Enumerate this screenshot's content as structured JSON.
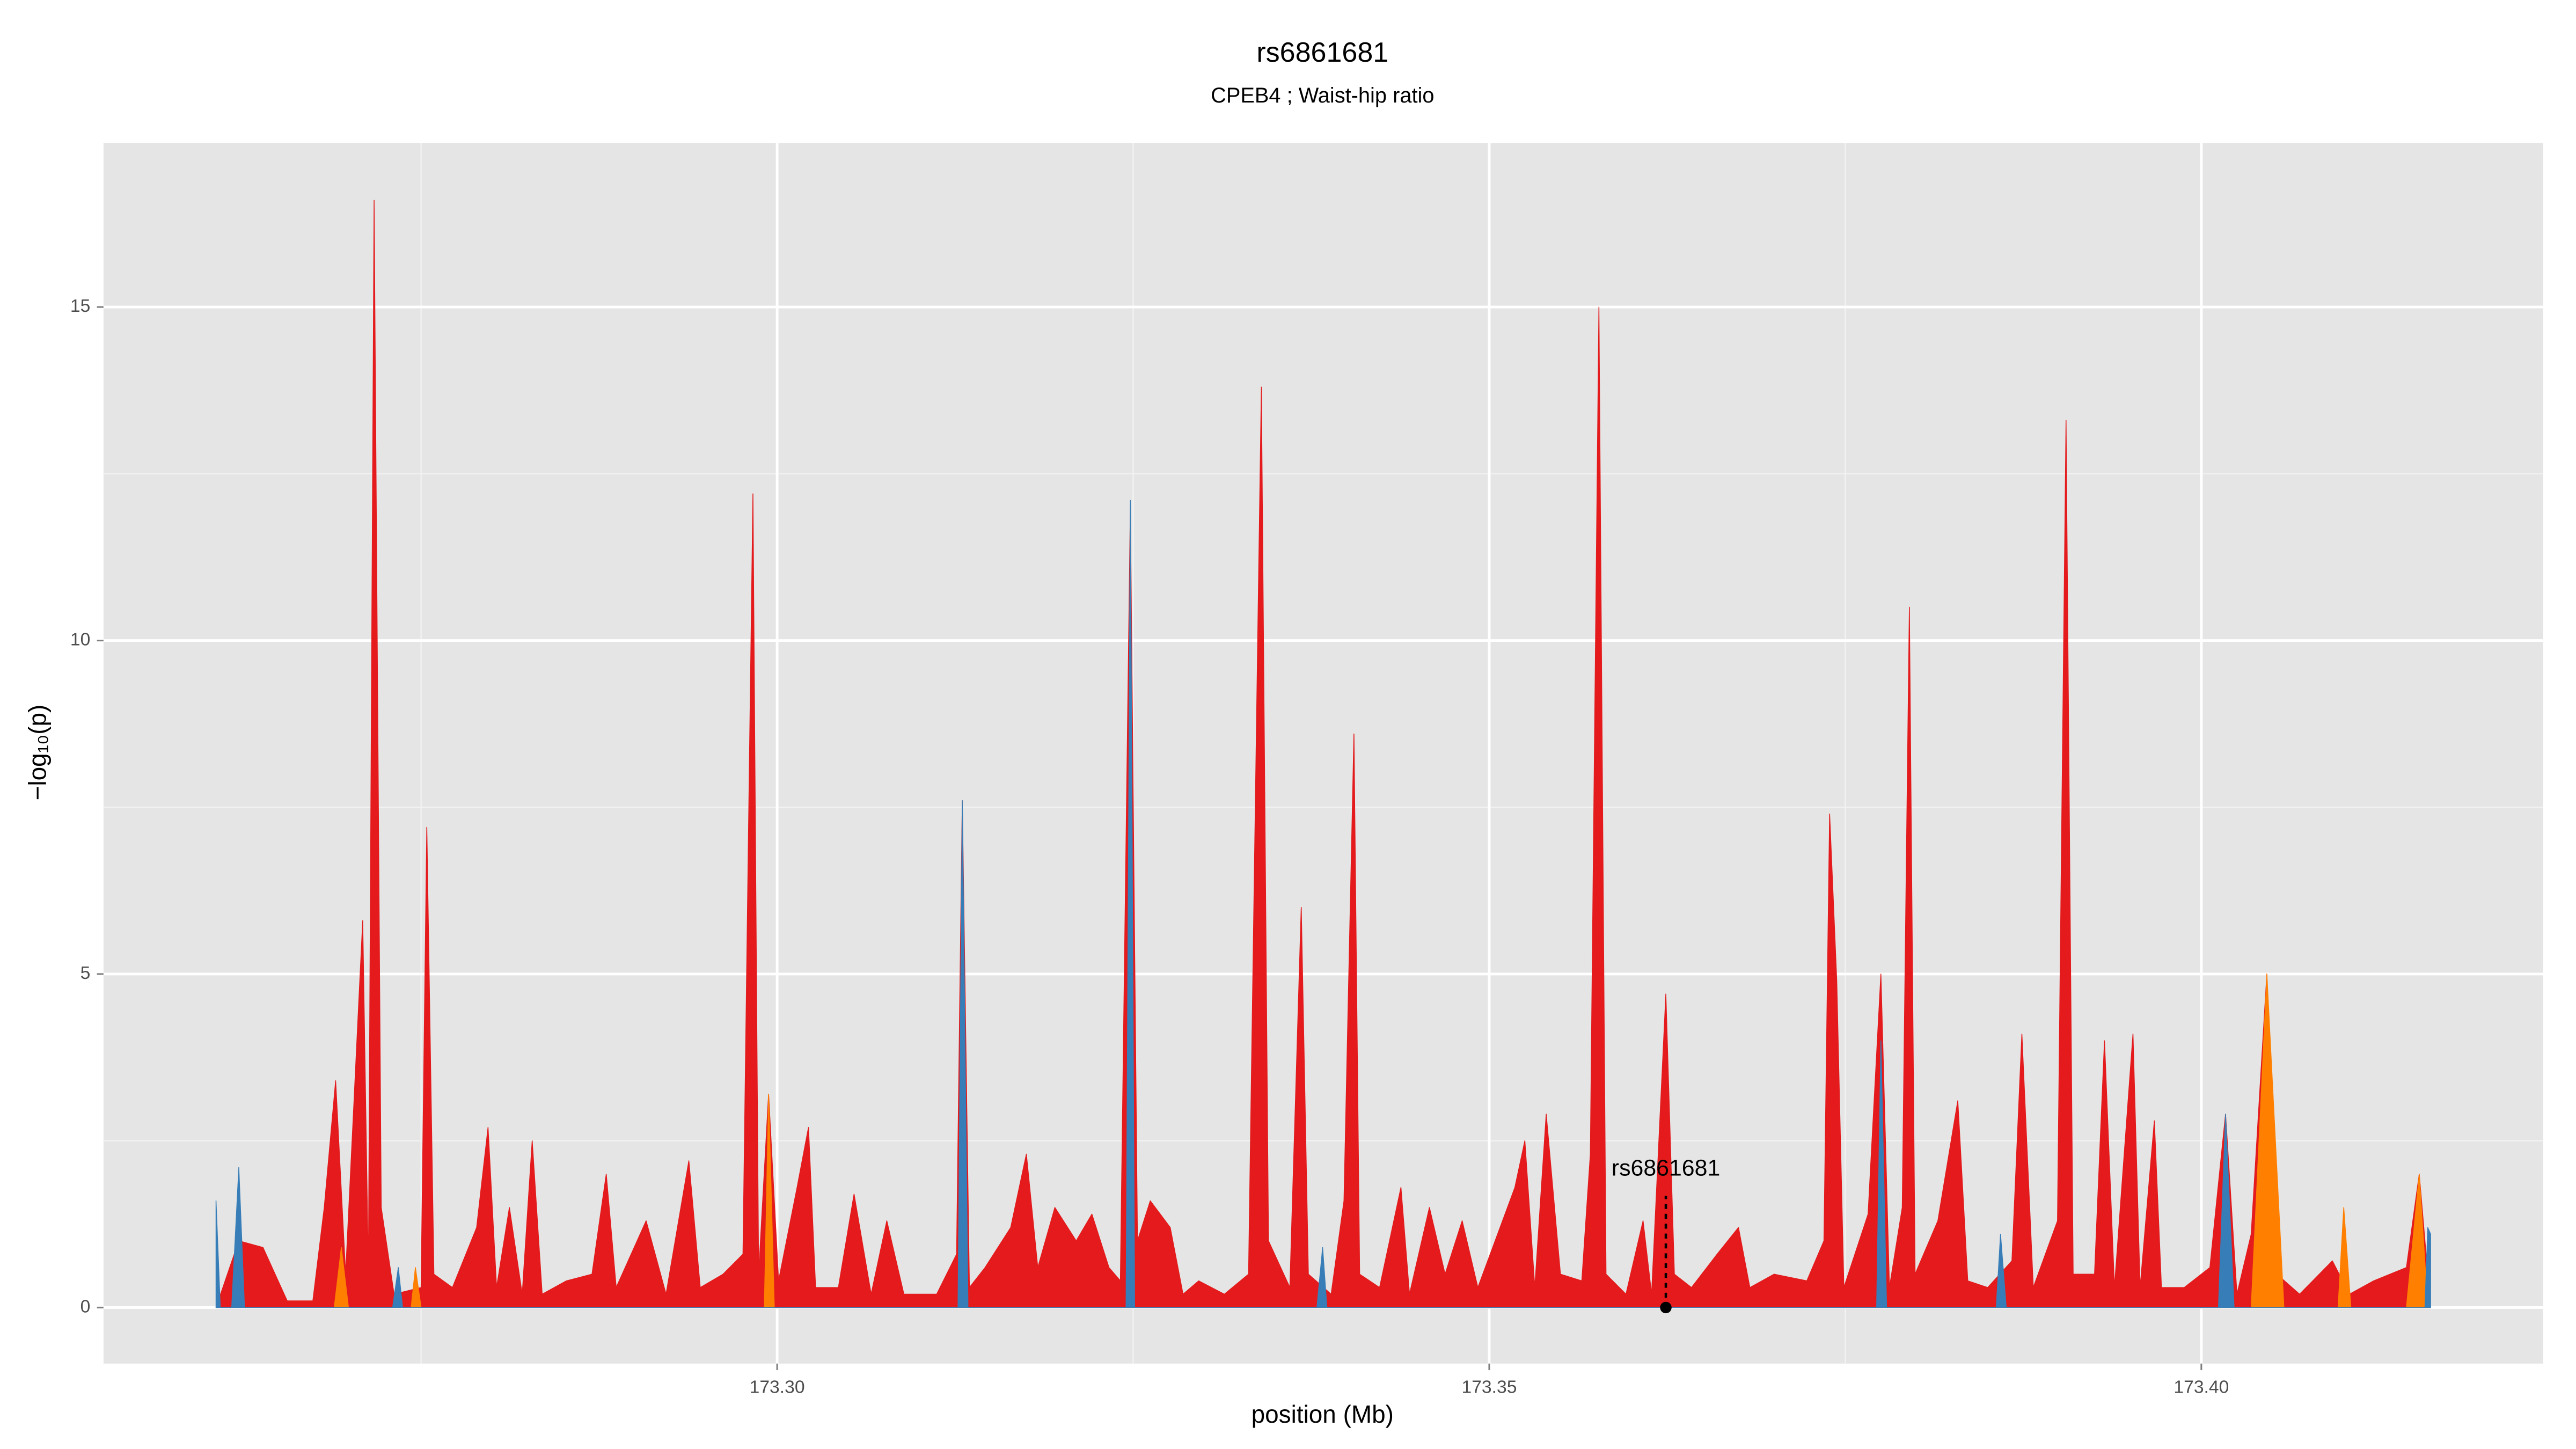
{
  "chart_data": {
    "type": "area",
    "title": "rs6861681",
    "subtitle": "CPEB4 ; Waist-hip ratio",
    "x_label": "position (Mb)",
    "y_label": "−log₁₀(p)",
    "xlim": [
      173.2527,
      173.424
    ],
    "ylim": [
      -0.84,
      17.46
    ],
    "xticks": [
      {
        "value": 173.3,
        "label": "173.30"
      },
      {
        "value": 173.35,
        "label": "173.35"
      },
      {
        "value": 173.4,
        "label": "173.40"
      }
    ],
    "yticks": [
      0,
      5,
      10,
      15
    ],
    "xminorticks": [
      173.275,
      173.325,
      173.375
    ],
    "yminorticks": [
      2.5,
      7.5,
      12.5
    ],
    "grid": true,
    "series": [
      {
        "color": "#e41a1c",
        "x": [
          173.2606,
          173.2622,
          173.2639,
          173.2656,
          173.2674,
          173.2682,
          173.269,
          173.2697,
          173.2702,
          173.2709,
          173.2713,
          173.2717,
          173.2722,
          173.2731,
          173.275,
          173.2754,
          173.2759,
          173.2772,
          173.2789,
          173.2797,
          173.2803,
          173.2812,
          173.2821,
          173.2828,
          173.2835,
          173.2852,
          173.287,
          173.288,
          173.2887,
          173.2908,
          173.2922,
          173.2938,
          173.2946,
          173.2962,
          173.2976,
          173.2983,
          173.2987,
          173.2994,
          173.3001,
          173.3014,
          173.3022,
          173.3027,
          173.3043,
          173.3054,
          173.3066,
          173.3077,
          173.3089,
          173.3112,
          173.3126,
          173.313,
          173.3135,
          173.3146,
          173.3164,
          173.3175,
          173.3183,
          173.3195,
          173.321,
          173.3221,
          173.3233,
          173.3241,
          173.3248,
          173.3253,
          173.3262,
          173.3276,
          173.3285,
          173.3296,
          173.3314,
          173.3331,
          173.334,
          173.3345,
          173.336,
          173.3368,
          173.3373,
          173.3389,
          173.3398,
          173.3405,
          173.3409,
          173.3423,
          173.3438,
          173.3444,
          173.3458,
          173.3469,
          173.3481,
          173.3492,
          173.3518,
          173.3525,
          173.3532,
          173.354,
          173.355,
          173.3565,
          173.3571,
          173.3577,
          173.3582,
          173.3596,
          173.3608,
          173.3614,
          173.3624,
          173.363,
          173.3642,
          173.366,
          173.3675,
          173.3683,
          173.37,
          173.3723,
          173.3735,
          173.3739,
          173.3744,
          173.3749,
          173.3766,
          173.3775,
          173.3781,
          173.379,
          173.3795,
          173.3799,
          173.3815,
          173.3829,
          173.3836,
          173.385,
          173.3867,
          173.3874,
          173.3882,
          173.3899,
          173.3905,
          173.391,
          173.3925,
          173.3932,
          173.3939,
          173.3952,
          173.3957,
          173.3967,
          173.3972,
          173.3988,
          173.4006,
          173.4017,
          173.4025,
          173.4035,
          173.4046,
          173.4053,
          173.4069,
          173.4092,
          173.4104,
          173.4121,
          173.4144,
          173.4153,
          173.4161
        ],
        "values": [
          0,
          1.0,
          0.9,
          0.1,
          0.1,
          1.5,
          3.4,
          0.5,
          2.7,
          5.8,
          0.5,
          16.6,
          1.5,
          0.2,
          0.3,
          7.2,
          0.5,
          0.3,
          1.2,
          2.7,
          0.3,
          1.5,
          0.2,
          2.5,
          0.2,
          0.4,
          0.5,
          2.0,
          0.3,
          1.3,
          0.2,
          2.2,
          0.3,
          0.5,
          0.8,
          12.2,
          0.5,
          3.2,
          0.4,
          1.8,
          2.7,
          0.3,
          0.3,
          1.7,
          0.2,
          1.3,
          0.2,
          0.2,
          0.8,
          7.6,
          0.3,
          0.6,
          1.2,
          2.3,
          0.6,
          1.5,
          1.0,
          1.4,
          0.6,
          0.4,
          12.0,
          1.0,
          1.6,
          1.2,
          0.2,
          0.4,
          0.2,
          0.5,
          13.8,
          1.0,
          0.3,
          6.0,
          0.5,
          0.2,
          1.6,
          8.6,
          0.5,
          0.3,
          1.8,
          0.2,
          1.5,
          0.5,
          1.3,
          0.3,
          1.8,
          2.5,
          0.3,
          2.9,
          0.5,
          0.4,
          2.3,
          15.0,
          0.5,
          0.2,
          1.3,
          0.2,
          4.7,
          0.5,
          0.3,
          0.8,
          1.2,
          0.3,
          0.5,
          0.4,
          1.0,
          7.4,
          4.9,
          0.3,
          1.4,
          5.0,
          0.3,
          1.5,
          10.5,
          0.5,
          1.3,
          3.1,
          0.4,
          0.3,
          0.7,
          4.1,
          0.3,
          1.3,
          13.3,
          0.5,
          0.5,
          4.0,
          0.3,
          4.1,
          0.3,
          2.8,
          0.3,
          0.3,
          0.6,
          2.9,
          0.2,
          1.1,
          5.0,
          0.5,
          0.2,
          0.7,
          0.2,
          0.4,
          0.6,
          2.0,
          0
        ]
      },
      {
        "color": "#ff7f00",
        "x": [
          173.2689,
          173.2694,
          173.2699,
          173.2743,
          173.2746,
          173.275,
          173.2991,
          173.2994,
          173.2998,
          173.4035,
          173.4046,
          173.4058,
          173.4096,
          173.41,
          173.4105,
          173.4144,
          173.4153,
          173.4159
        ],
        "values": [
          0,
          0.9,
          0,
          0,
          0.6,
          0,
          0,
          3.2,
          0,
          0,
          5.0,
          0,
          0,
          1.5,
          0,
          0,
          2.0,
          0
        ]
      },
      {
        "color": "#377eb8",
        "x": [
          173.2606,
          173.2609,
          173.2617,
          173.2622,
          173.2626,
          173.273,
          173.2734,
          173.2737,
          173.3127,
          173.313,
          173.3134,
          173.3245,
          173.3248,
          173.3251,
          173.3379,
          173.3383,
          173.3386,
          173.3772,
          173.3775,
          173.3779,
          173.3856,
          173.3859,
          173.3863,
          173.4012,
          173.4017,
          173.4023,
          173.4157,
          173.4159,
          173.4161
        ],
        "values": [
          1.6,
          0,
          0,
          2.1,
          0,
          0,
          0.6,
          0,
          0,
          7.6,
          0,
          0,
          12.1,
          0,
          0,
          0.9,
          0,
          0,
          4.0,
          0,
          0,
          1.1,
          0,
          0,
          2.9,
          0,
          0,
          1.2,
          1.1
        ]
      }
    ],
    "annotations": [
      {
        "text": "rs6861681",
        "x": 173.3624,
        "y": 0
      }
    ]
  }
}
